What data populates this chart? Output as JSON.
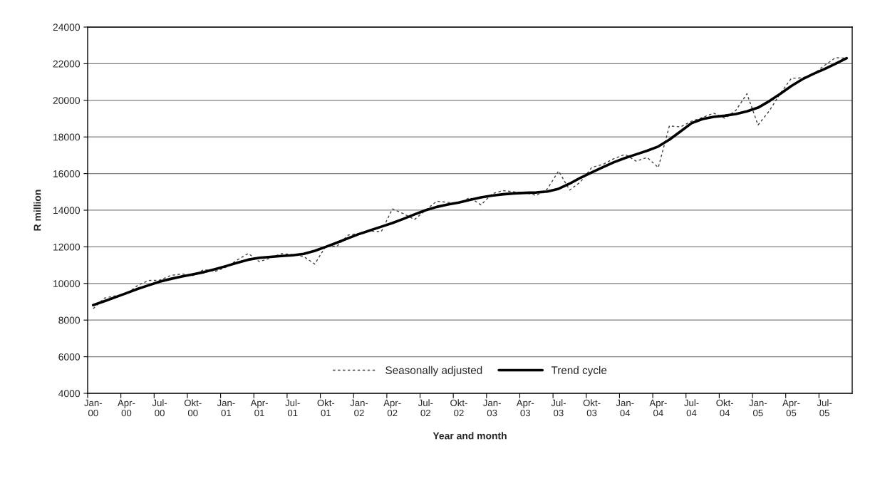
{
  "chart_data": {
    "type": "line",
    "ylabel": "R million",
    "xlabel": "Year and month",
    "categories": [
      "Jan-\n00",
      null,
      null,
      "Apr-\n00",
      null,
      null,
      "Jul-\n00",
      null,
      null,
      "Okt-\n00",
      null,
      null,
      "Jan-\n01",
      null,
      null,
      "Apr-\n01",
      null,
      null,
      "Jul-\n01",
      null,
      null,
      "Okt-\n01",
      null,
      null,
      "Jan-\n02",
      null,
      null,
      "Apr-\n02",
      null,
      null,
      "Jul-\n02",
      null,
      null,
      "Okt-\n02",
      null,
      null,
      "Jan-\n03",
      null,
      null,
      "Apr-\n03",
      null,
      null,
      "Jul-\n03",
      null,
      null,
      "Okt-\n03",
      null,
      null,
      "Jan-\n04",
      null,
      null,
      "Apr-\n04",
      null,
      null,
      "Jul-\n04",
      null,
      null,
      "Okt-\n04",
      null,
      null,
      "Jan-\n05",
      null,
      null,
      "Apr-\n05",
      null,
      null,
      "Jul-\n05",
      null,
      null
    ],
    "series": [
      {
        "name": "Seasonally adjusted",
        "color": "#404040",
        "line_style": "dashed",
        "values": [
          8620,
          9200,
          9320,
          9420,
          9890,
          10160,
          10180,
          10440,
          10520,
          10430,
          10760,
          10660,
          10890,
          11280,
          11640,
          11190,
          11390,
          11630,
          11580,
          11470,
          11060,
          12050,
          12030,
          12640,
          12730,
          12860,
          12830,
          14070,
          13810,
          13490,
          14000,
          14490,
          14430,
          14390,
          14690,
          14290,
          14900,
          15070,
          15000,
          14950,
          14810,
          15170,
          16140,
          15100,
          15560,
          16340,
          16500,
          16820,
          17050,
          16680,
          16880,
          16330,
          18600,
          18550,
          18860,
          19060,
          19300,
          19020,
          19450,
          20360,
          18650,
          19410,
          20360,
          21200,
          21230,
          21430,
          21910,
          22330,
          22300
        ]
      },
      {
        "name": "Trend cycle",
        "color": "#000000",
        "line_style": "solid",
        "values": [
          8820,
          9030,
          9250,
          9470,
          9700,
          9900,
          10100,
          10250,
          10380,
          10500,
          10620,
          10780,
          10950,
          11130,
          11300,
          11400,
          11450,
          11500,
          11540,
          11620,
          11780,
          12000,
          12230,
          12470,
          12700,
          12900,
          13100,
          13300,
          13530,
          13770,
          14000,
          14180,
          14310,
          14420,
          14560,
          14700,
          14800,
          14870,
          14920,
          14950,
          14970,
          15020,
          15170,
          15450,
          15780,
          16070,
          16350,
          16620,
          16850,
          17050,
          17250,
          17480,
          17850,
          18300,
          18750,
          18980,
          19100,
          19160,
          19250,
          19400,
          19600,
          19950,
          20350,
          20780,
          21150,
          21450,
          21710,
          22000,
          22300
        ]
      }
    ],
    "ylim": [
      4000,
      24000
    ],
    "yticks": [
      4000,
      6000,
      8000,
      10000,
      12000,
      14000,
      16000,
      18000,
      20000,
      22000,
      24000
    ],
    "grid": "y",
    "legend": "bottom",
    "marker": "none"
  }
}
